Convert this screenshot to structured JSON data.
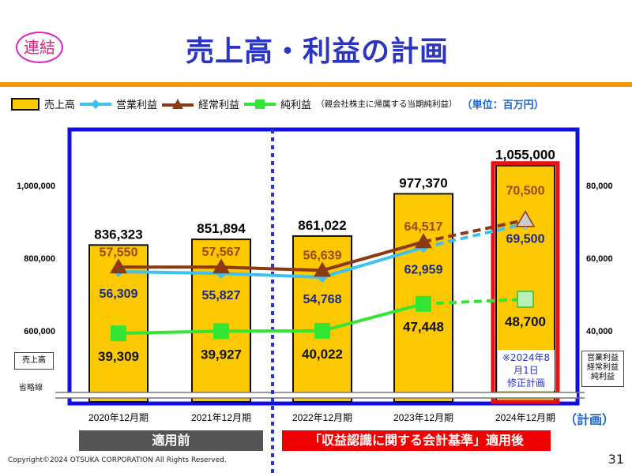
{
  "header": {
    "badge": "連結",
    "title": "売上高・利益の計画"
  },
  "legend": {
    "revenue": "売上高",
    "operating": "営業利益",
    "ordinary": "経常利益",
    "net": "純利益",
    "net_note": "（親会社株主に帰属する当期純利益）",
    "unit": "（単位：百万円）"
  },
  "side_labels": {
    "left_box": "売上高",
    "break_label": "省略線",
    "right_box": [
      "営業利益",
      "経常利益",
      "純利益"
    ]
  },
  "plan_suffix": "（計画）",
  "plan_note": [
    "※2024年8月1日",
    "修正計画"
  ],
  "bands": {
    "before": "適用前",
    "after": "「収益認識に関する会計基準」適用後"
  },
  "footer": {
    "copyright": "Copyright©2024 OTSUKA CORPORATION All Rights Reserved.",
    "page": "31"
  },
  "colors": {
    "revenue": "#fcc800",
    "operating": "#3fc0f0",
    "ordinary": "#8b3a12",
    "net": "#33e633",
    "frame": "#1010e0",
    "plan": "#e81010"
  },
  "chart_data": {
    "type": "bar+line",
    "categories": [
      "2020年12月期",
      "2021年12月期",
      "2022年12月期",
      "2023年12月期",
      "2024年12月期"
    ],
    "planned_category": "2024年12月期",
    "left_axis": {
      "ticks": [
        "600,000",
        "800,000",
        "1,000,000"
      ],
      "tick_values": [
        600000,
        800000,
        1000000
      ],
      "truncated": true
    },
    "right_axis": {
      "ticks": [
        "40,000",
        "60,000",
        "80,000"
      ],
      "tick_values": [
        40000,
        60000,
        80000
      ],
      "truncated": true
    },
    "series": [
      {
        "name": "売上高",
        "type": "bar",
        "axis": "left",
        "values": [
          836323,
          851894,
          861022,
          977370,
          1055000
        ],
        "labels": [
          "836,323",
          "851,894",
          "861,022",
          "977,370",
          "1,055,000"
        ]
      },
      {
        "name": "営業利益",
        "type": "line",
        "axis": "right",
        "values": [
          56309,
          55827,
          54768,
          62959,
          69500
        ],
        "labels": [
          "56,309",
          "55,827",
          "54,768",
          "62,959",
          "69,500"
        ]
      },
      {
        "name": "経常利益",
        "type": "line",
        "axis": "right",
        "values": [
          57550,
          57567,
          56639,
          64517,
          70500
        ],
        "labels": [
          "57,550",
          "57,567",
          "56,639",
          "64,517",
          "70,500"
        ]
      },
      {
        "name": "純利益",
        "type": "line",
        "axis": "right",
        "values": [
          39309,
          39927,
          40022,
          47448,
          48700
        ],
        "labels": [
          "39,309",
          "39,927",
          "40,022",
          "47,448",
          "48,700"
        ]
      }
    ]
  }
}
